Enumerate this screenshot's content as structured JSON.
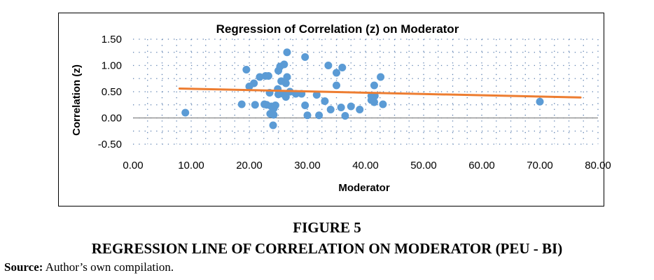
{
  "chart_data": {
    "type": "scatter",
    "title": "Regression of Correlation (z) on Moderator",
    "xlabel": "Moderator",
    "ylabel": "Correlation (z)",
    "xlim": [
      0,
      80
    ],
    "ylim": [
      -0.5,
      1.5
    ],
    "x_ticks": [
      "0.00",
      "10.00",
      "20.00",
      "30.00",
      "40.00",
      "50.00",
      "60.00",
      "70.00",
      "80.00"
    ],
    "y_ticks": [
      "1.50",
      "1.00",
      "0.50",
      "0.00",
      "-0.50"
    ],
    "grid": "dotted",
    "colors": {
      "points": "#5B9BD5",
      "trendline": "#ED7D31"
    },
    "trendline": {
      "x": [
        8,
        77
      ],
      "y": [
        0.56,
        0.39
      ]
    },
    "series": [
      {
        "points": [
          [
            9.0,
            0.1
          ],
          [
            18.7,
            0.26
          ],
          [
            19.5,
            0.92
          ],
          [
            20.0,
            0.6
          ],
          [
            20.8,
            0.66
          ],
          [
            21.0,
            0.25
          ],
          [
            21.8,
            0.78
          ],
          [
            22.6,
            0.26
          ],
          [
            22.8,
            0.8
          ],
          [
            23.3,
            0.8
          ],
          [
            23.0,
            0.25
          ],
          [
            23.5,
            0.48
          ],
          [
            23.6,
            0.08
          ],
          [
            23.8,
            0.22
          ],
          [
            24.1,
            -0.14
          ],
          [
            24.2,
            0.18
          ],
          [
            24.2,
            0.06
          ],
          [
            24.5,
            0.24
          ],
          [
            24.9,
            0.55
          ],
          [
            25.0,
            0.45
          ],
          [
            25.0,
            0.9
          ],
          [
            25.3,
            0.98
          ],
          [
            25.5,
            0.7
          ],
          [
            25.8,
            0.46
          ],
          [
            26.0,
            1.02
          ],
          [
            26.3,
            0.4
          ],
          [
            26.3,
            0.66
          ],
          [
            26.5,
            0.78
          ],
          [
            26.5,
            1.25
          ],
          [
            27.0,
            0.5
          ],
          [
            28.0,
            0.46
          ],
          [
            29.0,
            0.46
          ],
          [
            29.6,
            1.16
          ],
          [
            29.6,
            0.24
          ],
          [
            30.0,
            0.05
          ],
          [
            31.6,
            0.44
          ],
          [
            32.0,
            0.05
          ],
          [
            33.0,
            0.32
          ],
          [
            33.6,
            1.0
          ],
          [
            34.0,
            0.16
          ],
          [
            35.0,
            0.62
          ],
          [
            35.0,
            0.86
          ],
          [
            35.8,
            0.2
          ],
          [
            36.0,
            0.96
          ],
          [
            36.5,
            0.04
          ],
          [
            37.5,
            0.22
          ],
          [
            39.0,
            0.16
          ],
          [
            41.0,
            0.42
          ],
          [
            41.0,
            0.34
          ],
          [
            41.5,
            0.3
          ],
          [
            41.5,
            0.62
          ],
          [
            41.6,
            0.42
          ],
          [
            42.6,
            0.78
          ],
          [
            43.0,
            0.26
          ],
          [
            70.0,
            0.31
          ]
        ]
      }
    ]
  },
  "figure": {
    "number": "FIGURE 5",
    "caption": "REGRESSION LINE OF CORRELATION ON MODERATOR (PEU - BI)",
    "source_label": "Source:",
    "source_text": "Author’s own compilation."
  }
}
